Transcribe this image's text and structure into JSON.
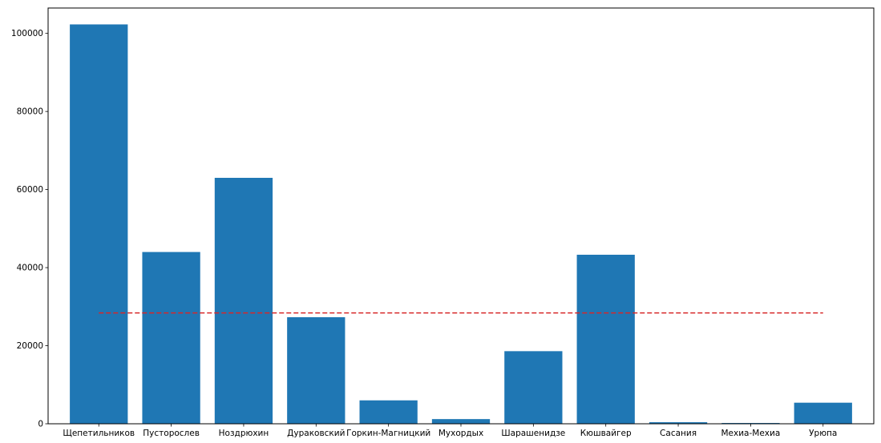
{
  "chart_data": {
    "type": "bar",
    "categories": [
      "Щепетильников",
      "Пусторослев",
      "Ноздрюхин",
      "Дураковский",
      "Горкин-Магницкий",
      "Мухордых",
      "Шарашенидзе",
      "Кюшвайгер",
      "Сасания",
      "Мехиа-Мехиа",
      "Урюпа"
    ],
    "values": [
      102300,
      44000,
      63000,
      27300,
      6000,
      1200,
      18600,
      43300,
      400,
      200,
      5400
    ],
    "reference_line": {
      "value": 28400,
      "style": "dashed",
      "color": "#d62728"
    },
    "ylim": [
      0,
      106500
    ],
    "yticks": [
      0,
      20000,
      40000,
      60000,
      80000,
      100000
    ],
    "ytick_labels": [
      "0",
      "20000",
      "40000",
      "60000",
      "80000",
      "100000"
    ],
    "grid": false,
    "bar_color": "#1f77b4"
  }
}
